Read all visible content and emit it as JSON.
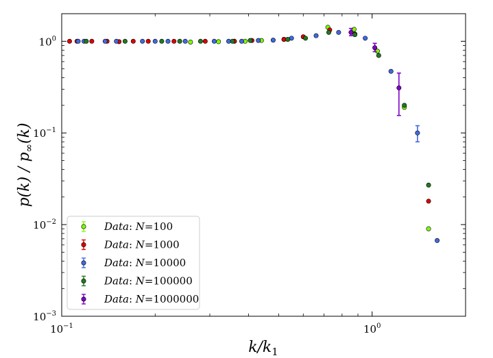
{
  "chart_data": {
    "type": "scatter",
    "xscale": "log",
    "yscale": "log",
    "xlim": [
      0.1,
      2.0
    ],
    "ylim": [
      0.001,
      2.0
    ],
    "xlabel": "k/k1",
    "ylabel": "p(k) / p∞(k)",
    "grid": false,
    "legend_position": "lower-left",
    "x_ticks": [
      {
        "value": 0.1,
        "mantissa": "10",
        "exponent": "−1"
      },
      {
        "value": 1,
        "mantissa": "10",
        "exponent": "0"
      }
    ],
    "y_ticks": [
      {
        "value": 0.001,
        "mantissa": "10",
        "exponent": "−3"
      },
      {
        "value": 0.01,
        "mantissa": "10",
        "exponent": "−2"
      },
      {
        "value": 0.1,
        "mantissa": "10",
        "exponent": "−1"
      },
      {
        "value": 1,
        "mantissa": "10",
        "exponent": "0"
      }
    ],
    "series": [
      {
        "name": "Data: N=100",
        "legend_prefix": "Data",
        "legend_n": "100",
        "color": "#7fff00",
        "points": [
          {
            "x": 0.26,
            "y": 0.98
          },
          {
            "x": 0.32,
            "y": 0.99
          },
          {
            "x": 0.36,
            "y": 1.0
          },
          {
            "x": 0.39,
            "y": 1.0
          },
          {
            "x": 0.44,
            "y": 1.02
          },
          {
            "x": 0.52,
            "y": 1.05
          },
          {
            "x": 0.72,
            "y": 1.42
          },
          {
            "x": 0.875,
            "y": 1.35
          },
          {
            "x": 1.04,
            "y": 0.78
          },
          {
            "x": 1.27,
            "y": 0.19
          },
          {
            "x": 1.52,
            "y": 0.009
          }
        ]
      },
      {
        "name": "Data: N=1000",
        "legend_prefix": "Data",
        "legend_n": "1000",
        "color": "#dd0000",
        "points": [
          {
            "x": 0.106,
            "y": 1.0
          },
          {
            "x": 0.112,
            "y": 1.0
          },
          {
            "x": 0.125,
            "y": 1.0
          },
          {
            "x": 0.14,
            "y": 1.0
          },
          {
            "x": 0.153,
            "y": 0.99
          },
          {
            "x": 0.17,
            "y": 1.0
          },
          {
            "x": 0.19,
            "y": 1.0
          },
          {
            "x": 0.23,
            "y": 1.0
          },
          {
            "x": 0.29,
            "y": 1.0
          },
          {
            "x": 0.36,
            "y": 1.0
          },
          {
            "x": 0.41,
            "y": 1.02
          },
          {
            "x": 0.52,
            "y": 1.05
          },
          {
            "x": 0.6,
            "y": 1.12
          },
          {
            "x": 0.73,
            "y": 1.33
          },
          {
            "x": 0.88,
            "y": 1.2
          },
          {
            "x": 1.52,
            "y": 0.018
          }
        ]
      },
      {
        "name": "Data: N=10000",
        "legend_prefix": "Data",
        "legend_n": "10000",
        "color": "#4169e1",
        "points": [
          {
            "x": 0.113,
            "y": 1.0
          },
          {
            "x": 0.118,
            "y": 1.0
          },
          {
            "x": 0.138,
            "y": 1.0
          },
          {
            "x": 0.15,
            "y": 1.0
          },
          {
            "x": 0.182,
            "y": 1.0
          },
          {
            "x": 0.2,
            "y": 1.0
          },
          {
            "x": 0.22,
            "y": 1.0
          },
          {
            "x": 0.25,
            "y": 1.0
          },
          {
            "x": 0.31,
            "y": 1.0
          },
          {
            "x": 0.345,
            "y": 1.0
          },
          {
            "x": 0.38,
            "y": 1.0
          },
          {
            "x": 0.43,
            "y": 1.02
          },
          {
            "x": 0.48,
            "y": 1.03
          },
          {
            "x": 0.55,
            "y": 1.08
          },
          {
            "x": 0.66,
            "y": 1.15
          },
          {
            "x": 0.78,
            "y": 1.25
          },
          {
            "x": 0.95,
            "y": 1.08
          },
          {
            "x": 1.15,
            "y": 0.47
          },
          {
            "x": 1.62,
            "y": 0.0067
          }
        ],
        "error_bars": [
          {
            "x": 1.4,
            "y": 0.1,
            "low": 0.08,
            "high": 0.12
          }
        ]
      },
      {
        "name": "Data: N=100000",
        "legend_prefix": "Data",
        "legend_n": "100000",
        "color": "#1f7a1f",
        "points": [
          {
            "x": 0.12,
            "y": 1.0
          },
          {
            "x": 0.16,
            "y": 1.0
          },
          {
            "x": 0.21,
            "y": 1.0
          },
          {
            "x": 0.24,
            "y": 1.0
          },
          {
            "x": 0.28,
            "y": 1.0
          },
          {
            "x": 0.355,
            "y": 1.0
          },
          {
            "x": 0.405,
            "y": 1.02
          },
          {
            "x": 0.535,
            "y": 1.05
          },
          {
            "x": 0.61,
            "y": 1.08
          },
          {
            "x": 0.725,
            "y": 1.25
          },
          {
            "x": 0.88,
            "y": 1.18
          },
          {
            "x": 1.05,
            "y": 0.7
          },
          {
            "x": 1.27,
            "y": 0.2
          },
          {
            "x": 1.52,
            "y": 0.027
          }
        ]
      },
      {
        "name": "Data: N=1000000",
        "legend_prefix": "Data",
        "legend_n": "1000000",
        "color": "#7f00c8",
        "points": [],
        "error_bars": [
          {
            "x": 0.855,
            "y": 1.25,
            "low": 1.15,
            "high": 1.38
          },
          {
            "x": 1.02,
            "y": 0.85,
            "low": 0.77,
            "high": 0.95
          },
          {
            "x": 1.22,
            "y": 0.31,
            "low": 0.155,
            "high": 0.45
          }
        ]
      }
    ]
  }
}
